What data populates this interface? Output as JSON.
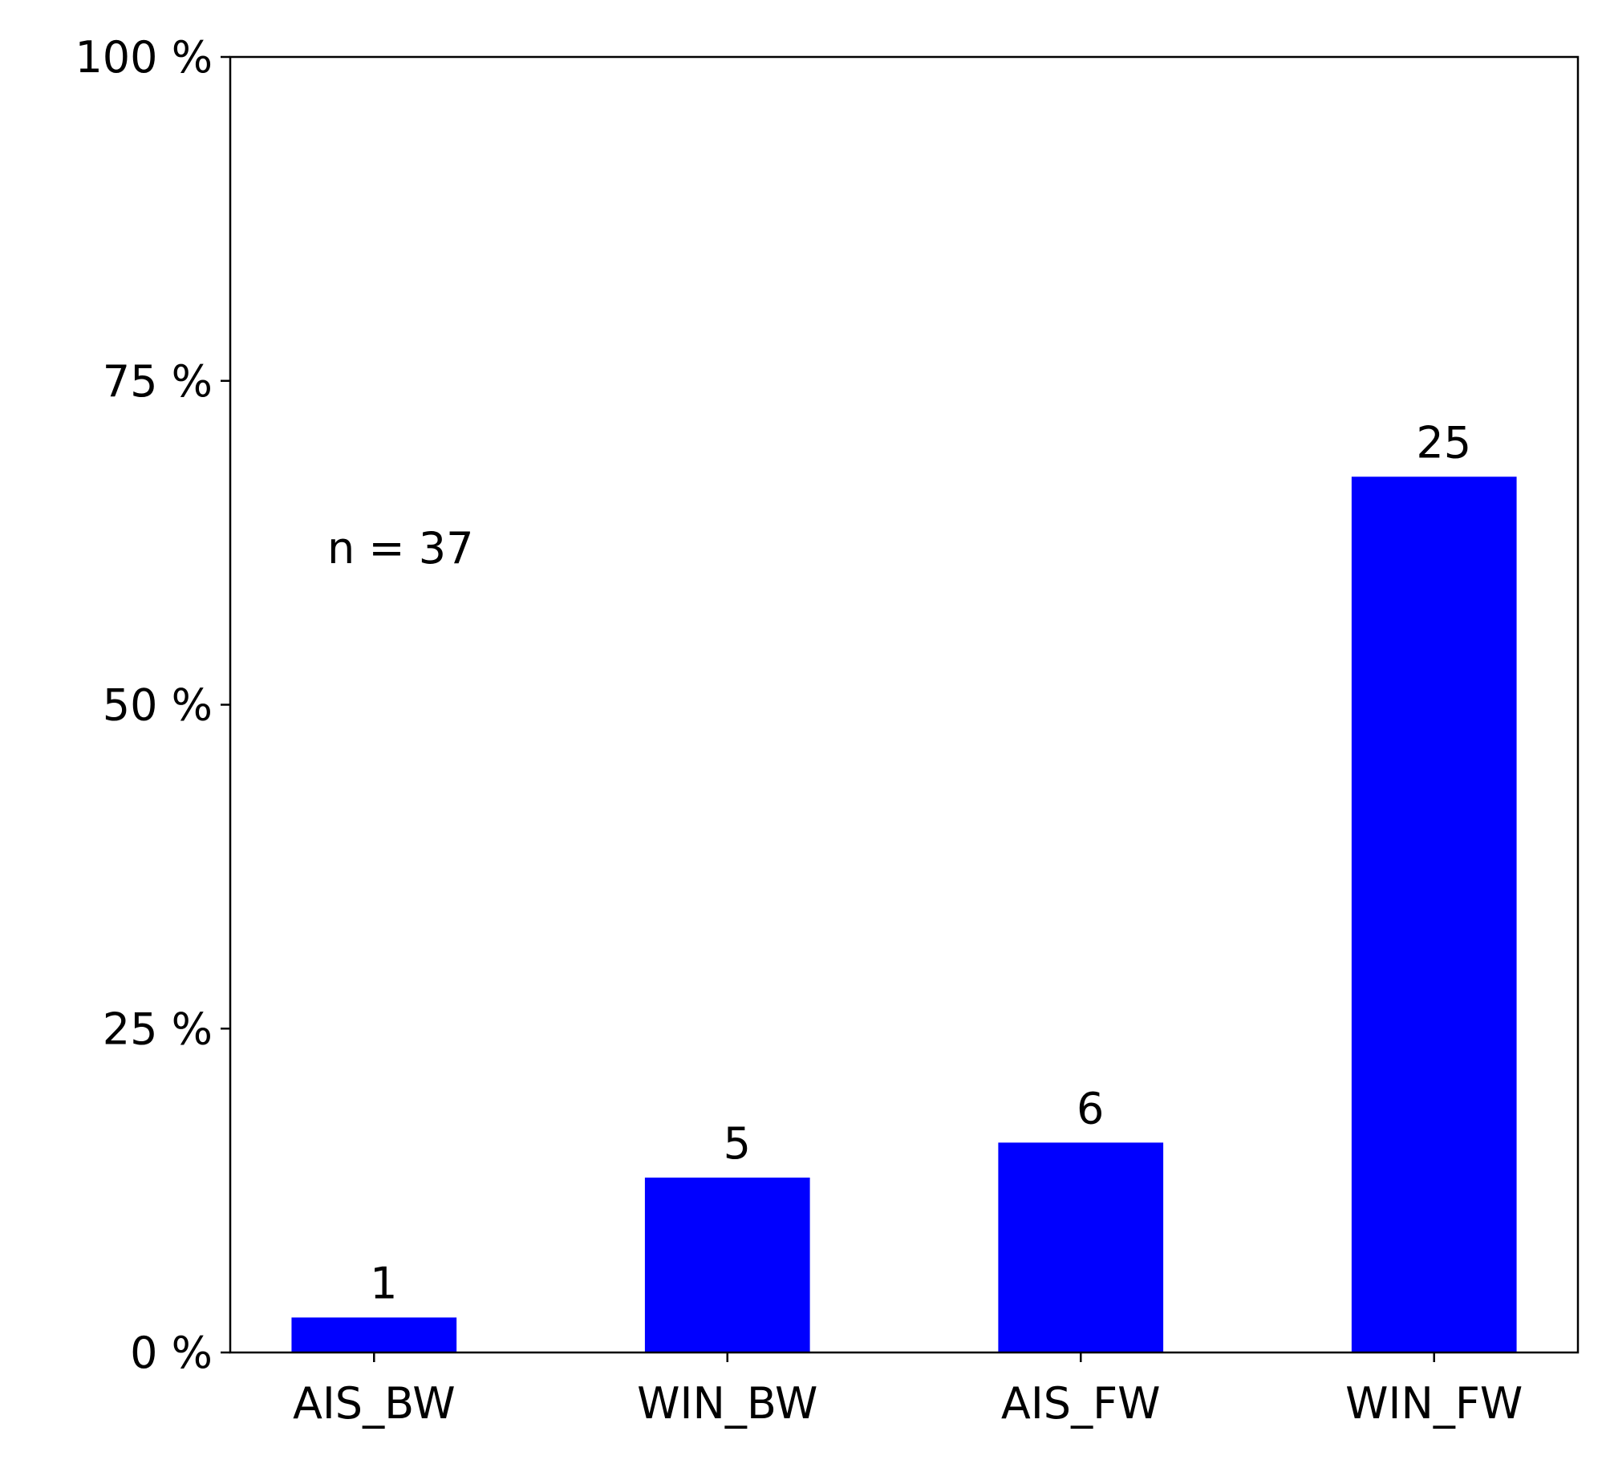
{
  "chart_data": {
    "type": "bar",
    "categories": [
      "AIS_BW",
      "WIN_BW",
      "AIS_FW",
      "WIN_FW"
    ],
    "values": [
      2.7,
      13.5,
      16.2,
      67.6
    ],
    "counts": [
      1,
      5,
      6,
      25
    ],
    "annotation": "n = 37",
    "color": "#0000ff",
    "ylim": [
      0,
      100
    ],
    "yticks": [
      {
        "value": 0,
        "label": "0 %"
      },
      {
        "value": 25,
        "label": "25 %"
      },
      {
        "value": 50,
        "label": "50 %"
      },
      {
        "value": 75,
        "label": "75 %"
      },
      {
        "value": 100,
        "label": "100 %"
      }
    ],
    "grid": false
  }
}
